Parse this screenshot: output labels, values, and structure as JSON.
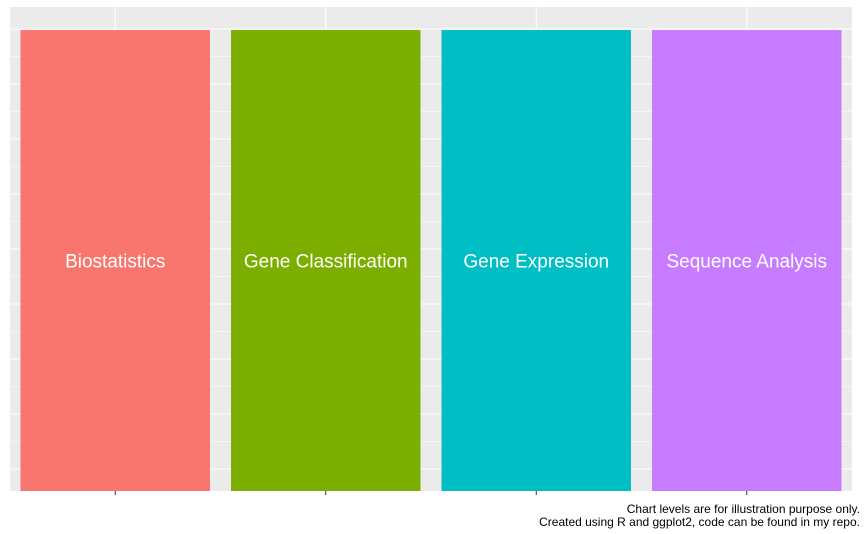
{
  "chart_data": {
    "type": "bar",
    "categories": [
      "Biostatistics",
      "Gene Classification",
      "Gene Expression",
      "Sequence Analysis"
    ],
    "values": [
      1,
      1,
      1,
      1
    ],
    "colors": [
      "#F8766D",
      "#7CAE00",
      "#00BFC4",
      "#C77CFF"
    ],
    "ylim": [
      0,
      1.05
    ],
    "grid": true,
    "background": "#EBEBEB",
    "label_color": "#FFFFFF",
    "caption": [
      "Chart levels are for illustration purpose only.",
      "Created using R and ggplot2, code can be found in my repo."
    ]
  }
}
